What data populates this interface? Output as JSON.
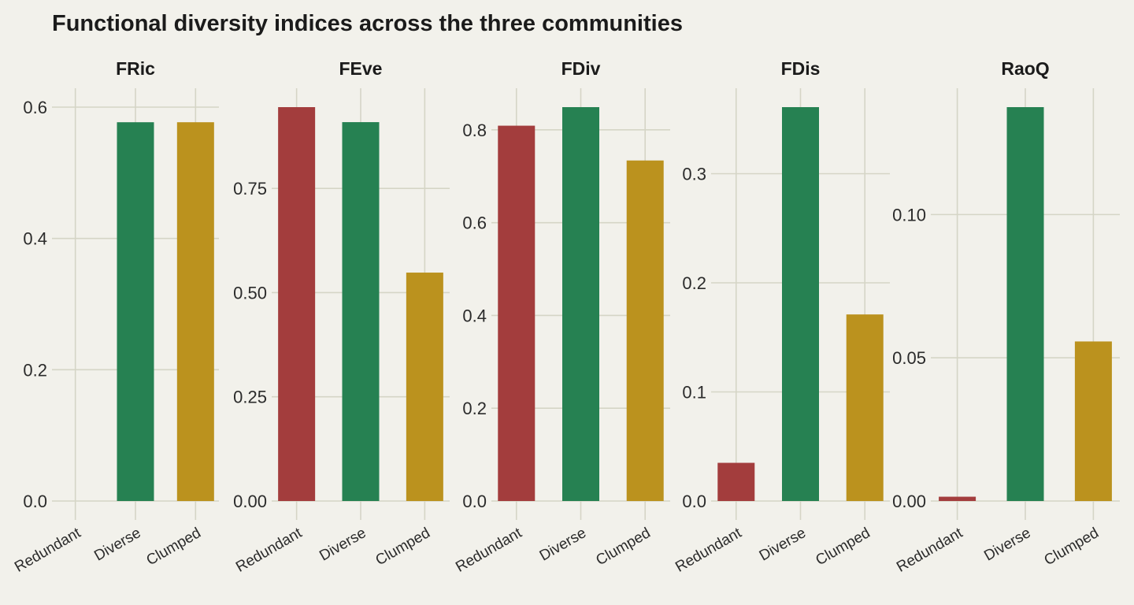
{
  "title": "Functional diversity indices across the three communities",
  "colors": {
    "background": "#f2f1eb",
    "grid": "#d5d5c6",
    "Redundant": "#a33d3d",
    "Diverse": "#268152",
    "Clumped": "#bb921e"
  },
  "chart_data": [
    {
      "type": "bar",
      "title": "FRic",
      "categories": [
        "Redundant",
        "Diverse",
        "Clumped"
      ],
      "values": [
        0.0,
        0.577,
        0.577
      ],
      "ylim": [
        0,
        0.6
      ],
      "yticks": [
        0,
        0.2,
        0.4,
        0.6
      ],
      "ytick_labels": [
        "0.0",
        "0.2",
        "0.4",
        "0.6"
      ],
      "grid": true
    },
    {
      "type": "bar",
      "title": "FEve",
      "categories": [
        "Redundant",
        "Diverse",
        "Clumped"
      ],
      "values": [
        0.945,
        0.909,
        0.548
      ],
      "ylim": [
        0,
        0.945
      ],
      "yticks": [
        0,
        0.25,
        0.5,
        0.75
      ],
      "ytick_labels": [
        "0.00",
        "0.25",
        "0.50",
        "0.75"
      ],
      "grid": true
    },
    {
      "type": "bar",
      "title": "FDiv",
      "categories": [
        "Redundant",
        "Diverse",
        "Clumped"
      ],
      "values": [
        0.809,
        0.849,
        0.734
      ],
      "ylim": [
        0,
        0.849
      ],
      "yticks": [
        0,
        0.2,
        0.4,
        0.6,
        0.8
      ],
      "ytick_labels": [
        "0.0",
        "0.2",
        "0.4",
        "0.6",
        "0.8"
      ],
      "grid": true
    },
    {
      "type": "bar",
      "title": "FDis",
      "categories": [
        "Redundant",
        "Diverse",
        "Clumped"
      ],
      "values": [
        0.035,
        0.361,
        0.171
      ],
      "ylim": [
        0,
        0.361
      ],
      "yticks": [
        0,
        0.1,
        0.2,
        0.3
      ],
      "ytick_labels": [
        "0.0",
        "0.1",
        "0.2",
        "0.3"
      ],
      "grid": true
    },
    {
      "type": "bar",
      "title": "RaoQ",
      "categories": [
        "Redundant",
        "Diverse",
        "Clumped"
      ],
      "values": [
        0.0015,
        0.1375,
        0.0557
      ],
      "ylim": [
        0,
        0.1375
      ],
      "yticks": [
        0,
        0.05,
        0.1
      ],
      "ytick_labels": [
        "0.00",
        "0.05",
        "0.10"
      ],
      "grid": true
    }
  ]
}
